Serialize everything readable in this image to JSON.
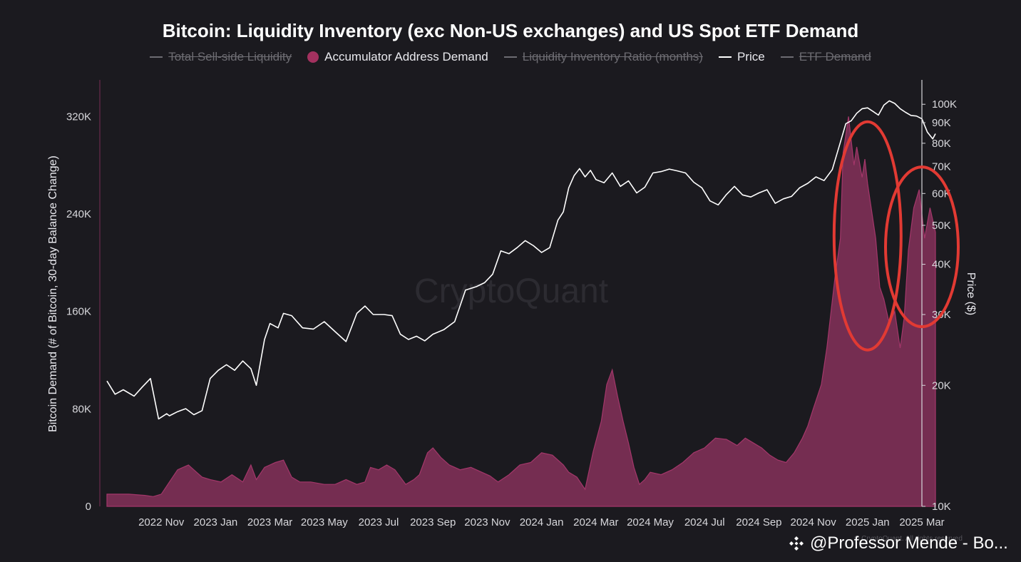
{
  "colors": {
    "background": "#1b1a1f",
    "demand_fill": "#7a2e54",
    "demand_stroke": "#a3376a",
    "price_line": "#ffffff",
    "highlight": "#e23a33",
    "inactive": "#6d6c72"
  },
  "legend": [
    {
      "label": "Total Sell-side Liquidity",
      "active": false,
      "icon": "line"
    },
    {
      "label": "Accumulator Address Demand",
      "active": true,
      "icon": "dot"
    },
    {
      "label": "Liquidity Inventory Ratio (months)",
      "active": false,
      "icon": "line"
    },
    {
      "label": "Price",
      "active": true,
      "icon": "line"
    },
    {
      "label": "ETF Demand",
      "active": false,
      "icon": "line"
    }
  ],
  "watermark": "CryptoQuant",
  "copyright": "© CryptoQuant. All rights reserved",
  "credit": {
    "text": "@Professor Mende - Bo...",
    "icon": "binance-icon"
  },
  "chart_data": {
    "type": "area+line",
    "title": "Bitcoin: Liquidity Inventory (exc Non-US exchanges) and US Spot ETF Demand",
    "ylabel_left": "Bitcoin Demand (# of Bitcoin, 30-day Balance Change)",
    "ylabel_right": "Price ($)",
    "y_left_ticks": [
      "0",
      "80K",
      "160K",
      "240K",
      "320K"
    ],
    "y_left_range": [
      0,
      350000
    ],
    "y_right_ticks": [
      "10K",
      "20K",
      "30K",
      "40K",
      "50K",
      "60K",
      "70K",
      "80K",
      "90K",
      "100K"
    ],
    "y_right_values": [
      10000,
      20000,
      30000,
      40000,
      50000,
      60000,
      70000,
      80000,
      90000,
      100000
    ],
    "y_right_range": [
      10000,
      115000
    ],
    "y_right_scale": "log",
    "x_range": [
      0,
      30
    ],
    "x_ticks": [
      {
        "label": "2022 Nov",
        "x": 2.0
      },
      {
        "label": "2023 Jan",
        "x": 4.0
      },
      {
        "label": "2023 Mar",
        "x": 6.0
      },
      {
        "label": "2023 May",
        "x": 8.0
      },
      {
        "label": "2023 Jul",
        "x": 10.0
      },
      {
        "label": "2023 Sep",
        "x": 12.0
      },
      {
        "label": "2023 Nov",
        "x": 14.0
      },
      {
        "label": "2024 Jan",
        "x": 16.0
      },
      {
        "label": "2024 Mar",
        "x": 18.0
      },
      {
        "label": "2024 May",
        "x": 20.0
      },
      {
        "label": "2024 Jul",
        "x": 22.0
      },
      {
        "label": "2024 Sep",
        "x": 24.0
      },
      {
        "label": "2024 Nov",
        "x": 26.0
      },
      {
        "label": "2025 Jan",
        "x": 28.0
      },
      {
        "label": "2025 Mar",
        "x": 30.0
      }
    ],
    "series": [
      {
        "name": "Accumulator Address Demand",
        "type": "area",
        "axis": "left",
        "x": [
          0.0,
          0.8,
          1.4,
          1.7,
          2.0,
          2.3,
          2.6,
          3.0,
          3.3,
          3.5,
          3.8,
          4.2,
          4.6,
          5.0,
          5.3,
          5.5,
          5.8,
          6.2,
          6.5,
          6.8,
          7.1,
          7.5,
          8.0,
          8.4,
          8.8,
          9.2,
          9.5,
          9.7,
          10.0,
          10.3,
          10.6,
          11.0,
          11.3,
          11.5,
          11.8,
          12.0,
          12.3,
          12.6,
          13.0,
          13.4,
          13.8,
          14.1,
          14.4,
          14.8,
          15.2,
          15.6,
          16.0,
          16.4,
          16.8,
          17.0,
          17.3,
          17.6,
          17.9,
          18.2,
          18.4,
          18.6,
          18.8,
          19.0,
          19.2,
          19.4,
          19.6,
          19.8,
          20.0,
          20.4,
          20.8,
          21.2,
          21.6,
          22.0,
          22.4,
          22.8,
          23.2,
          23.5,
          23.8,
          24.1,
          24.4,
          24.7,
          25.0,
          25.3,
          25.6,
          25.8,
          26.0,
          26.3,
          26.5,
          26.8,
          27.0,
          27.1,
          27.3,
          27.5,
          27.6,
          27.8,
          27.9,
          28.0,
          28.1,
          28.3,
          28.45,
          28.6,
          28.8,
          29.0,
          29.2,
          29.35,
          29.5,
          29.7,
          29.9,
          30.1,
          30.3,
          30.5
        ],
        "values": [
          10000,
          10000,
          9000,
          8000,
          10000,
          20000,
          30000,
          34000,
          28000,
          24000,
          22000,
          20000,
          26000,
          20000,
          34000,
          22000,
          32000,
          36000,
          38000,
          24000,
          20000,
          20000,
          18000,
          18000,
          22000,
          18000,
          20000,
          32000,
          30000,
          34000,
          30000,
          18000,
          22000,
          26000,
          44000,
          48000,
          40000,
          34000,
          30000,
          32000,
          28000,
          25000,
          20000,
          26000,
          34000,
          36000,
          44000,
          42000,
          34000,
          28000,
          24000,
          14000,
          45000,
          70000,
          100000,
          112000,
          90000,
          70000,
          52000,
          32000,
          18000,
          22000,
          28000,
          26000,
          30000,
          36000,
          44000,
          48000,
          56000,
          55000,
          50000,
          56000,
          52000,
          48000,
          42000,
          38000,
          36000,
          44000,
          56000,
          66000,
          80000,
          100000,
          130000,
          188000,
          220000,
          290000,
          320000,
          280000,
          295000,
          270000,
          285000,
          265000,
          250000,
          220000,
          180000,
          170000,
          150000,
          160000,
          130000,
          155000,
          210000,
          245000,
          260000,
          220000,
          245000,
          225000
        ]
      },
      {
        "name": "Price",
        "type": "line",
        "axis": "right",
        "x": [
          0.0,
          0.3,
          0.6,
          1.0,
          1.3,
          1.6,
          1.9,
          2.2,
          2.3,
          2.6,
          2.9,
          3.2,
          3.5,
          3.8,
          4.1,
          4.4,
          4.7,
          5.0,
          5.3,
          5.5,
          5.8,
          6.0,
          6.3,
          6.5,
          6.8,
          7.2,
          7.6,
          8.0,
          8.4,
          8.8,
          9.2,
          9.5,
          9.8,
          10.2,
          10.5,
          10.8,
          11.1,
          11.4,
          11.7,
          12.0,
          12.4,
          12.8,
          13.2,
          13.6,
          13.9,
          14.2,
          14.5,
          14.8,
          15.1,
          15.4,
          15.7,
          16.0,
          16.3,
          16.6,
          16.8,
          17.0,
          17.2,
          17.4,
          17.6,
          17.8,
          18.0,
          18.3,
          18.6,
          18.9,
          19.2,
          19.5,
          19.8,
          20.1,
          20.4,
          20.7,
          21.0,
          21.3,
          21.6,
          21.9,
          22.2,
          22.5,
          22.8,
          23.1,
          23.4,
          23.7,
          24.0,
          24.3,
          24.6,
          24.9,
          25.2,
          25.5,
          25.8,
          26.1,
          26.4,
          26.7,
          27.0,
          27.2,
          27.4,
          27.6,
          27.8,
          28.0,
          28.2,
          28.4,
          28.6,
          28.8,
          29.0,
          29.2,
          29.4,
          29.6,
          29.8,
          30.0,
          30.2,
          30.4,
          30.5
        ],
        "values": [
          20500,
          19000,
          19500,
          18800,
          19800,
          20800,
          16500,
          17000,
          16800,
          17200,
          17500,
          16900,
          17300,
          20800,
          21800,
          22500,
          21800,
          23000,
          22000,
          20000,
          26000,
          28500,
          27800,
          30200,
          29800,
          27800,
          27600,
          28800,
          27200,
          25700,
          30200,
          31500,
          30000,
          30000,
          29800,
          26800,
          26000,
          26500,
          25800,
          26800,
          27500,
          28800,
          34500,
          35200,
          36000,
          37800,
          43200,
          42500,
          44000,
          45800,
          44500,
          42800,
          44000,
          51500,
          54000,
          62000,
          66500,
          69200,
          66000,
          68500,
          65000,
          63800,
          67500,
          62500,
          64500,
          60200,
          62200,
          67500,
          68000,
          69000,
          68300,
          67500,
          64000,
          62000,
          57500,
          56200,
          59600,
          62500,
          59500,
          58800,
          60200,
          61300,
          56700,
          58200,
          59000,
          62000,
          63600,
          66000,
          64600,
          68800,
          80500,
          89500,
          91000,
          95000,
          97500,
          98000,
          96000,
          94000,
          99500,
          102000,
          100500,
          97500,
          95500,
          93800,
          93500,
          92000,
          85300,
          82000,
          84500
        ]
      }
    ],
    "annotations": [
      {
        "type": "ellipse",
        "label": "",
        "color": "#e23a33",
        "x_center": 28.0,
        "y_center_left": 222000
      },
      {
        "type": "ellipse",
        "label": "",
        "color": "#e23a33",
        "x_center": 30.0,
        "y_center_left": 213000
      }
    ]
  }
}
